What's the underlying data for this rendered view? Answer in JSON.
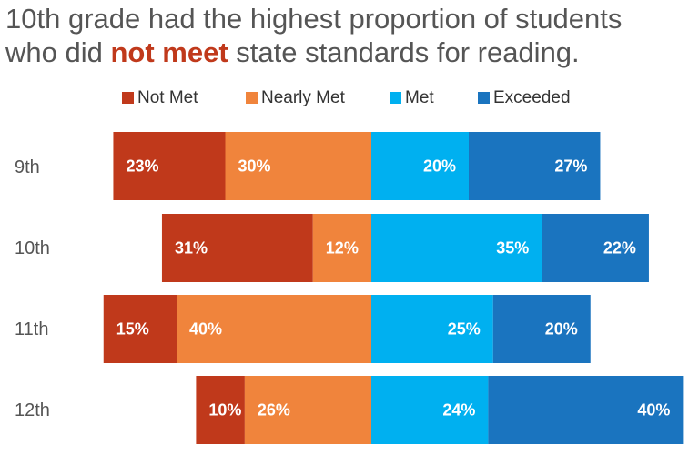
{
  "title": {
    "line1": "10th grade had the highest proportion of students",
    "line2_before": "who did ",
    "line2_highlight": "not meet",
    "line2_after": " state standards for reading."
  },
  "colors": {
    "not_met": "#c0391b",
    "nearly_met": "#f0843c",
    "met": "#00b0f0",
    "exceeded": "#1a74bf",
    "highlight": "#c0391b"
  },
  "chart_data": {
    "type": "bar",
    "subtype": "diverging-stacked-horizontal",
    "title": "10th grade had the highest proportion of students who did not meet state standards for reading.",
    "categories": [
      "9th",
      "10th",
      "11th",
      "12th"
    ],
    "series": [
      {
        "name": "Not Met",
        "values": [
          23,
          31,
          15,
          10
        ],
        "color": "#c0391b",
        "side": "left"
      },
      {
        "name": "Nearly Met",
        "values": [
          30,
          12,
          40,
          26
        ],
        "color": "#f0843c",
        "side": "left"
      },
      {
        "name": "Met",
        "values": [
          20,
          35,
          25,
          24
        ],
        "color": "#00b0f0",
        "side": "right"
      },
      {
        "name": "Exceeded",
        "values": [
          27,
          22,
          20,
          40
        ],
        "color": "#1a74bf",
        "side": "right"
      }
    ],
    "value_suffix": "%",
    "legend_position": "top",
    "grid": false
  }
}
